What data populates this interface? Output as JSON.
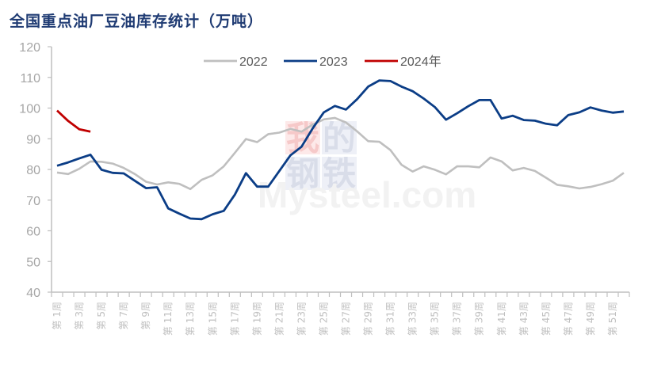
{
  "title": "全国重点油厂豆油库存统计（万吨）",
  "watermark": {
    "cn": [
      "我",
      "的",
      "钢",
      "铁"
    ],
    "en": "Mysteel.com"
  },
  "chart_data": {
    "type": "line",
    "title": "全国重点油厂豆油库存统计（万吨）",
    "xlabel": "",
    "ylabel": "",
    "ylim": [
      40,
      120
    ],
    "yticks": [
      40,
      50,
      60,
      70,
      80,
      90,
      100,
      110,
      120
    ],
    "grid": false,
    "legend_position": "top",
    "x": [
      "第1周",
      "第2周",
      "第3周",
      "第4周",
      "第5周",
      "第6周",
      "第7周",
      "第8周",
      "第9周",
      "第10周",
      "第11周",
      "第12周",
      "第13周",
      "第14周",
      "第15周",
      "第16周",
      "第17周",
      "第18周",
      "第19周",
      "第20周",
      "第21周",
      "第22周",
      "第23周",
      "第24周",
      "第25周",
      "第26周",
      "第27周",
      "第28周",
      "第29周",
      "第30周",
      "第31周",
      "第32周",
      "第33周",
      "第34周",
      "第35周",
      "第36周",
      "第37周",
      "第38周",
      "第39周",
      "第40周",
      "第41周",
      "第42周",
      "第43周",
      "第44周",
      "第45周",
      "第46周",
      "第47周",
      "第48周",
      "第49周",
      "第50周",
      "第51周",
      "第52周"
    ],
    "xtick_labels": [
      "第 1周",
      "第 3周",
      "第 5周",
      "第 7周",
      "第 9周",
      "第 11周",
      "第 13周",
      "第 15周",
      "第 17周",
      "第 19周",
      "第 21周",
      "第 23周",
      "第 25周",
      "第 27周",
      "第 29周",
      "第 31周",
      "第 33周",
      "第 35周",
      "第 37周",
      "第 39周",
      "第 41周",
      "第 43周",
      "第 45周",
      "第 47周",
      "第 49周",
      "第 51周"
    ],
    "series": [
      {
        "name": "2022",
        "color": "#bfbfbf",
        "values": [
          79.0,
          78.5,
          80.2,
          82.6,
          82.5,
          81.9,
          80.5,
          78.5,
          76.0,
          75.1,
          75.8,
          75.3,
          73.6,
          76.6,
          78.1,
          81.0,
          85.4,
          89.9,
          88.9,
          91.5,
          92.0,
          93.2,
          92.3,
          94.6,
          96.3,
          96.8,
          95.3,
          92.4,
          89.2,
          89.0,
          86.3,
          81.5,
          79.3,
          81.0,
          79.9,
          78.4,
          81.0,
          81.0,
          80.7,
          83.9,
          82.6,
          79.7,
          80.5,
          79.5,
          77.3,
          75.0,
          74.5,
          73.8,
          74.3,
          75.2,
          76.3,
          78.9
        ]
      },
      {
        "name": "2023",
        "color": "#0b3d86",
        "values": [
          81.2,
          82.3,
          83.6,
          84.8,
          79.9,
          78.9,
          78.7,
          76.3,
          73.9,
          74.2,
          67.3,
          65.6,
          64.0,
          63.8,
          65.4,
          66.5,
          71.8,
          78.8,
          74.4,
          74.4,
          79.5,
          84.6,
          87.4,
          93.4,
          98.6,
          100.7,
          99.5,
          102.9,
          107.0,
          109.0,
          108.8,
          107.0,
          105.5,
          103.1,
          100.3,
          96.2,
          98.3,
          100.6,
          102.6,
          102.6,
          96.6,
          97.5,
          96.1,
          95.9,
          94.9,
          94.4,
          97.7,
          98.6,
          100.2,
          99.2,
          98.5,
          98.9
        ]
      },
      {
        "name": "2024年",
        "color": "#c00000",
        "values": [
          99.2,
          95.8,
          93.1,
          92.3
        ]
      }
    ]
  }
}
